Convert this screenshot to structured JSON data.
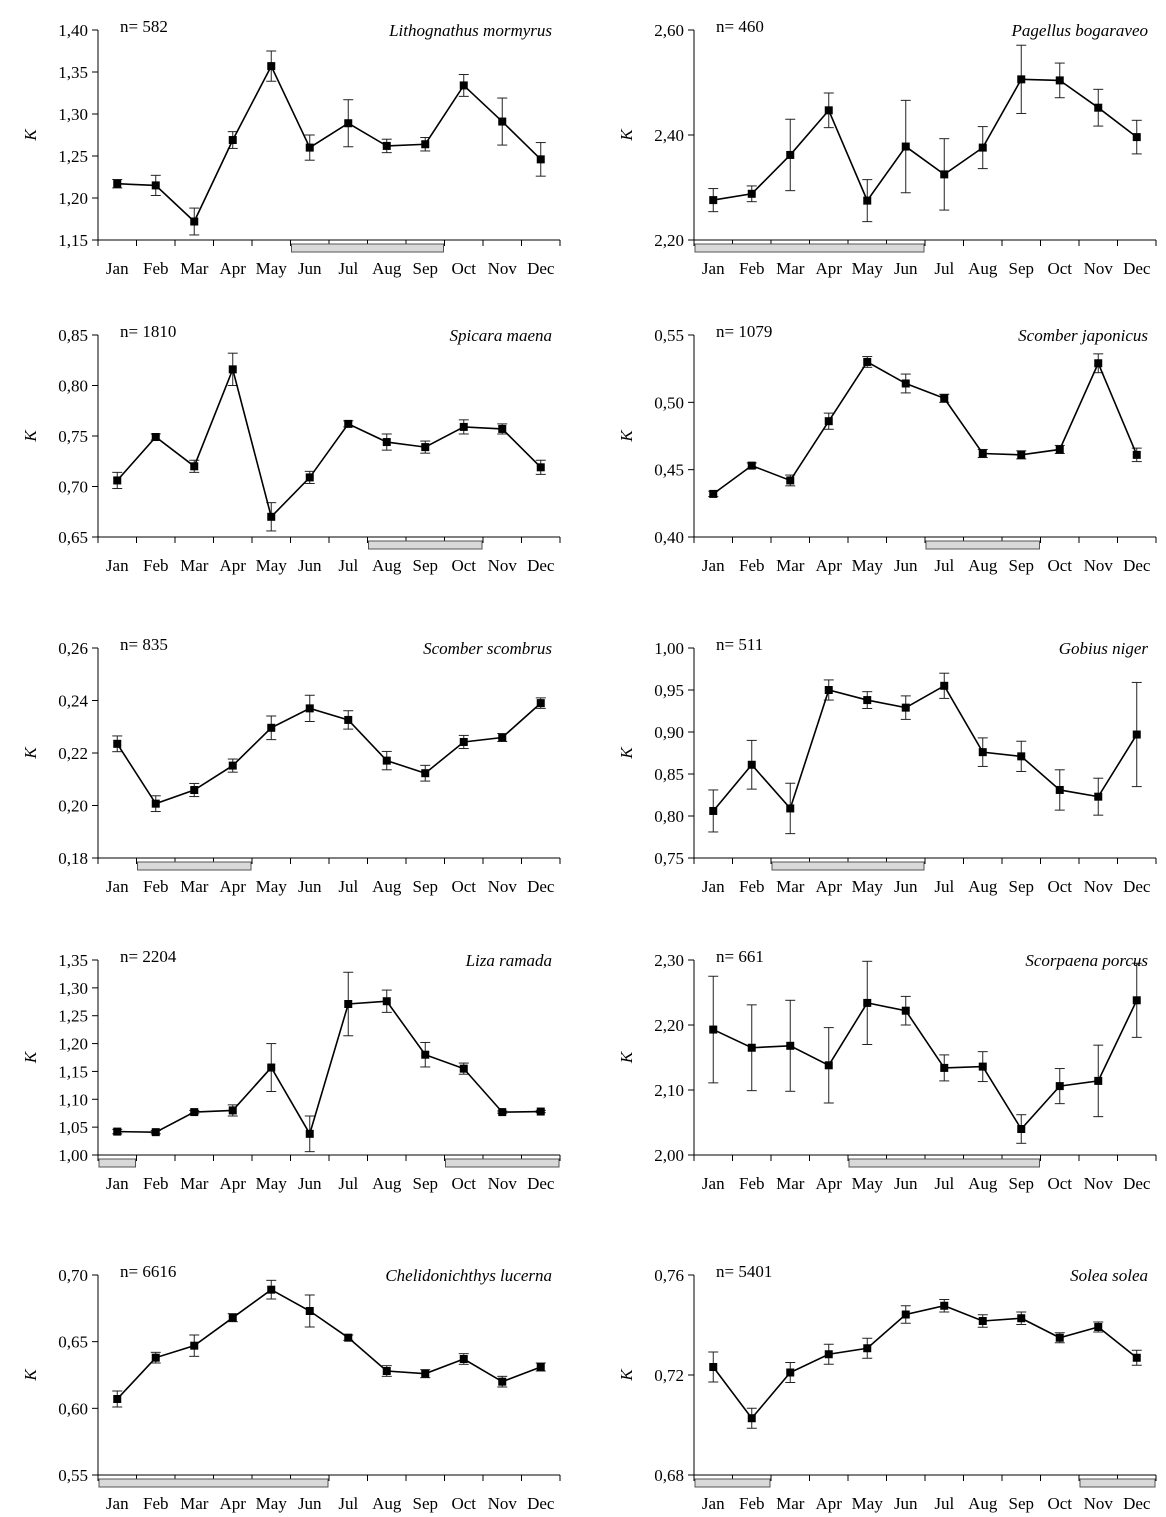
{
  "months": [
    "Jan",
    "Feb",
    "Mar",
    "Apr",
    "May",
    "Jun",
    "Jul",
    "Aug",
    "Sep",
    "Oct",
    "Nov",
    "Dec"
  ],
  "chart_data": [
    {
      "type": "line",
      "title": "Lithognathus mormyrus",
      "n_label": "n= 582",
      "ylabel": "K",
      "ylim": [
        1.15,
        1.4
      ],
      "yticks": [
        "1,15",
        "1,20",
        "1,25",
        "1,30",
        "1,35",
        "1,40"
      ],
      "values": [
        1.217,
        1.215,
        1.172,
        1.269,
        1.357,
        1.26,
        1.289,
        1.262,
        1.264,
        1.334,
        1.291,
        1.246
      ],
      "errors": [
        0.005,
        0.012,
        0.016,
        0.01,
        0.018,
        0.015,
        0.028,
        0.008,
        0.008,
        0.013,
        0.028,
        0.02
      ],
      "bar": [
        5,
        8
      ]
    },
    {
      "type": "line",
      "title": "Pagellus bogaraveo",
      "n_label": "n= 460",
      "ylabel": "K",
      "ylim": [
        2.2,
        2.6
      ],
      "yticks": [
        "2,20",
        "2,40",
        "2,60"
      ],
      "values": [
        2.276,
        2.288,
        2.362,
        2.447,
        2.275,
        2.378,
        2.325,
        2.376,
        2.506,
        2.504,
        2.452,
        2.396
      ],
      "errors": [
        0.022,
        0.015,
        0.068,
        0.033,
        0.04,
        0.088,
        0.068,
        0.04,
        0.065,
        0.033,
        0.035,
        0.032
      ],
      "bar": [
        0,
        5
      ]
    },
    {
      "type": "line",
      "title": "Spicara maena",
      "n_label": "n= 1810",
      "ylabel": "K",
      "ylim": [
        0.65,
        0.85
      ],
      "yticks": [
        "0,65",
        "0,70",
        "0,75",
        "0,80",
        "0,85"
      ],
      "values": [
        0.706,
        0.749,
        0.72,
        0.816,
        0.67,
        0.709,
        0.762,
        0.744,
        0.739,
        0.759,
        0.757,
        0.719
      ],
      "errors": [
        0.008,
        0.003,
        0.006,
        0.016,
        0.014,
        0.006,
        0.003,
        0.008,
        0.006,
        0.007,
        0.005,
        0.007
      ],
      "bar": [
        7,
        9
      ]
    },
    {
      "type": "line",
      "title": "Scomber japonicus",
      "n_label": "n= 1079",
      "ylabel": "K",
      "ylim": [
        0.4,
        0.55
      ],
      "yticks": [
        "0,40",
        "0,45",
        "0,50",
        "0,55"
      ],
      "values": [
        0.432,
        0.453,
        0.442,
        0.486,
        0.53,
        0.514,
        0.503,
        0.462,
        0.461,
        0.465,
        0.529,
        0.461
      ],
      "errors": [
        0.002,
        0.002,
        0.004,
        0.006,
        0.004,
        0.007,
        0.003,
        0.003,
        0.003,
        0.003,
        0.007,
        0.005
      ],
      "bar": [
        6,
        8
      ]
    },
    {
      "type": "line",
      "title": "Scomber scombrus",
      "n_label": "n= 835",
      "ylabel": "K",
      "ylim": [
        0.18,
        0.26
      ],
      "yticks": [
        "0,18",
        "0,20",
        "0,22",
        "0,24",
        "0,26"
      ],
      "values": [
        0.2235,
        0.2007,
        0.2059,
        0.2152,
        0.2296,
        0.237,
        0.2326,
        0.2171,
        0.2123,
        0.2242,
        0.2259,
        0.239
      ],
      "errors": [
        0.003,
        0.003,
        0.0025,
        0.0025,
        0.0045,
        0.005,
        0.0035,
        0.0035,
        0.003,
        0.0025,
        0.0015,
        0.002
      ],
      "bar": [
        1,
        3
      ]
    },
    {
      "type": "line",
      "title": "Gobius niger",
      "n_label": "n= 511",
      "ylabel": "K",
      "ylim": [
        0.75,
        1.0
      ],
      "yticks": [
        "0,75",
        "0,80",
        "0,85",
        "0,90",
        "0,95",
        "1,00"
      ],
      "values": [
        0.806,
        0.861,
        0.809,
        0.95,
        0.938,
        0.929,
        0.955,
        0.876,
        0.871,
        0.831,
        0.823,
        0.897
      ],
      "errors": [
        0.025,
        0.029,
        0.03,
        0.012,
        0.01,
        0.014,
        0.015,
        0.017,
        0.018,
        0.024,
        0.022,
        0.062
      ],
      "bar": [
        2,
        5
      ]
    },
    {
      "type": "line",
      "title": "Liza ramada",
      "n_label": "n= 2204",
      "ylabel": "K",
      "ylim": [
        1.0,
        1.35
      ],
      "yticks": [
        "1,00",
        "1,05",
        "1,10",
        "1,15",
        "1,20",
        "1,25",
        "1,30",
        "1,35"
      ],
      "values": [
        1.042,
        1.041,
        1.077,
        1.08,
        1.157,
        1.038,
        1.271,
        1.276,
        1.18,
        1.155,
        1.077,
        1.078
      ],
      "errors": [
        0.004,
        0.003,
        0.003,
        0.01,
        0.043,
        0.032,
        0.057,
        0.02,
        0.022,
        0.01,
        0.002,
        0.002
      ],
      "bar": [
        0,
        0,
        9,
        11
      ]
    },
    {
      "type": "line",
      "title": "Scorpaena porcus",
      "n_label": "n= 661",
      "ylabel": "K",
      "ylim": [
        2.0,
        2.3
      ],
      "yticks": [
        "2,00",
        "2,10",
        "2,20",
        "2,30"
      ],
      "values": [
        2.193,
        2.165,
        2.168,
        2.138,
        2.234,
        2.222,
        2.134,
        2.136,
        2.04,
        2.106,
        2.114,
        2.238
      ],
      "errors": [
        0.082,
        0.066,
        0.07,
        0.058,
        0.064,
        0.022,
        0.02,
        0.023,
        0.022,
        0.027,
        0.055,
        0.057
      ],
      "bar": [
        4,
        8
      ]
    },
    {
      "type": "line",
      "title": "Chelidonichthys lucerna",
      "n_label": "n= 6616",
      "ylabel": "K",
      "ylim": [
        0.55,
        0.7
      ],
      "yticks": [
        "0,55",
        "0,60",
        "0,65",
        "0,70"
      ],
      "values": [
        0.607,
        0.638,
        0.647,
        0.668,
        0.689,
        0.673,
        0.653,
        0.628,
        0.626,
        0.637,
        0.62,
        0.631
      ],
      "errors": [
        0.006,
        0.004,
        0.008,
        0.003,
        0.007,
        0.012,
        0.002,
        0.004,
        0.003,
        0.004,
        0.004,
        0.003
      ],
      "bar": [
        0,
        5
      ]
    },
    {
      "type": "line",
      "title": "Solea solea",
      "n_label": "n= 5401",
      "ylabel": "K",
      "ylim": [
        0.68,
        0.76
      ],
      "yticks": [
        "0,68",
        "0,72",
        "0,76"
      ],
      "values": [
        0.7232,
        0.7027,
        0.721,
        0.7283,
        0.7307,
        0.7442,
        0.7477,
        0.7416,
        0.7427,
        0.7349,
        0.7392,
        0.7269
      ],
      "errors": [
        0.006,
        0.004,
        0.004,
        0.004,
        0.004,
        0.0035,
        0.0025,
        0.0025,
        0.0025,
        0.002,
        0.002,
        0.003
      ],
      "bar": [
        0,
        1,
        10,
        11
      ]
    }
  ]
}
